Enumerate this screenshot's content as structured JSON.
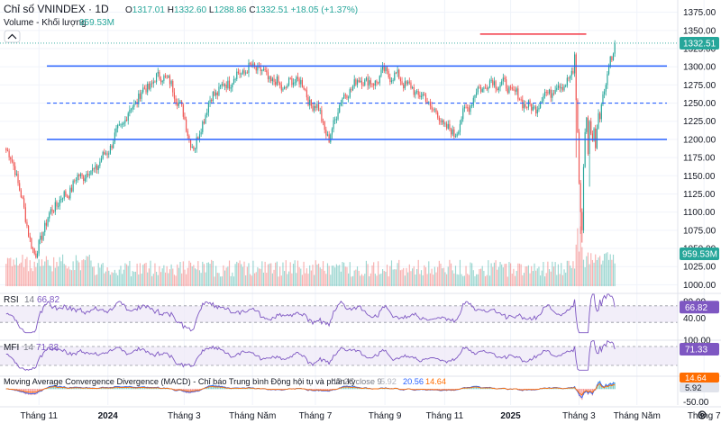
{
  "header": {
    "symbol": "Chỉ số VNINDEX · 1D",
    "ohlc": [
      {
        "k": "O",
        "v": "1317.01"
      },
      {
        "k": "H",
        "v": "1332.60"
      },
      {
        "k": "L",
        "v": "1288.86"
      },
      {
        "k": "C",
        "v": "1332.51"
      }
    ],
    "change": "+18.05 (+1.37%)",
    "volume_label": "Volume - Khối lượng",
    "volume_value": "959.53M",
    "collapse_icon": "chevron-up-icon"
  },
  "colors": {
    "up": "#26a69a",
    "down": "#ef5350",
    "level_line": "#2962ff",
    "resistance": "#f23645",
    "osc_line": "#7e57c2",
    "osc_band": "#ede7f6"
  },
  "chart_data": {
    "type": "candlestick",
    "price_axis": {
      "ticks": [
        1000,
        1025,
        1050,
        1075,
        1100,
        1125,
        1150,
        1175,
        1200,
        1225,
        1250,
        1275,
        1300,
        1325,
        1350,
        1375
      ],
      "tick_labels": [
        "1000.00",
        "1025.00",
        "1050.00",
        "1075.00",
        "1100.00",
        "1125.00",
        "1150.00",
        "1175.00",
        "1200.00",
        "1225.00",
        "1250.00",
        "1275.00",
        "1300.00",
        "1325.00",
        "1350.00",
        "1375.00"
      ],
      "range": [
        998,
        1382
      ]
    },
    "last_price": 1332.51,
    "last_price_label": "1332.51",
    "last_volume_label": "959.53M",
    "drawn_levels": [
      {
        "price": 1301,
        "style": "solid",
        "from": 0.068,
        "to": 1.0
      },
      {
        "price": 1250,
        "style": "dashed",
        "from": 0.068,
        "to": 1.0
      },
      {
        "price": 1200,
        "style": "solid",
        "from": 0.068,
        "to": 1.0
      },
      {
        "price": 1345,
        "style": "solid-red",
        "from": 0.778,
        "to": 0.952
      }
    ],
    "x_axis": {
      "labels": [
        {
          "text": "Tháng 11",
          "bold": false
        },
        {
          "text": "2024",
          "bold": true
        },
        {
          "text": "Tháng 3",
          "bold": false
        },
        {
          "text": "Tháng Năm",
          "bold": false
        },
        {
          "text": "Tháng 7",
          "bold": false
        },
        {
          "text": "Tháng 9",
          "bold": false
        },
        {
          "text": "Tháng 11",
          "bold": false
        },
        {
          "text": "2025",
          "bold": true
        },
        {
          "text": "Tháng 3",
          "bold": false
        },
        {
          "text": "Tháng Năm",
          "bold": false
        },
        {
          "text": "Tháng 7",
          "bold": false
        }
      ]
    },
    "anchors": [
      [
        0.0,
        1185
      ],
      [
        0.015,
        1160
      ],
      [
        0.032,
        1090
      ],
      [
        0.048,
        1035
      ],
      [
        0.06,
        1075
      ],
      [
        0.08,
        1110
      ],
      [
        0.1,
        1125
      ],
      [
        0.12,
        1150
      ],
      [
        0.14,
        1155
      ],
      [
        0.16,
        1175
      ],
      [
        0.18,
        1205
      ],
      [
        0.2,
        1235
      ],
      [
        0.22,
        1262
      ],
      [
        0.24,
        1278
      ],
      [
        0.258,
        1290
      ],
      [
        0.272,
        1272
      ],
      [
        0.285,
        1250
      ],
      [
        0.3,
        1205
      ],
      [
        0.31,
        1185
      ],
      [
        0.322,
        1225
      ],
      [
        0.34,
        1262
      ],
      [
        0.36,
        1275
      ],
      [
        0.385,
        1292
      ],
      [
        0.41,
        1300
      ],
      [
        0.43,
        1285
      ],
      [
        0.455,
        1270
      ],
      [
        0.48,
        1285
      ],
      [
        0.5,
        1250
      ],
      [
        0.515,
        1240
      ],
      [
        0.53,
        1195
      ],
      [
        0.545,
        1245
      ],
      [
        0.565,
        1270
      ],
      [
        0.585,
        1285
      ],
      [
        0.6,
        1275
      ],
      [
        0.62,
        1292
      ],
      [
        0.645,
        1285
      ],
      [
        0.665,
        1270
      ],
      [
        0.69,
        1255
      ],
      [
        0.715,
        1225
      ],
      [
        0.735,
        1205
      ],
      [
        0.755,
        1240
      ],
      [
        0.775,
        1268
      ],
      [
        0.8,
        1280
      ],
      [
        0.825,
        1272
      ],
      [
        0.845,
        1255
      ],
      [
        0.865,
        1240
      ],
      [
        0.885,
        1262
      ],
      [
        0.905,
        1272
      ],
      [
        0.925,
        1282
      ],
      [
        0.945,
        1298
      ],
      [
        0.965,
        1312
      ],
      [
        0.98,
        1325
      ],
      [
        1.0,
        1332
      ]
    ],
    "shock": {
      "start": 0.92,
      "closes": [
        1317,
        1254,
        1210,
        1140,
        1100,
        1075,
        1162,
        1210,
        1230,
        1180,
        1225,
        1208,
        1198,
        1215,
        1188,
        1215,
        1236,
        1228,
        1248,
        1262,
        1266,
        1275,
        1290,
        1300,
        1314,
        1309,
        1318,
        1332
      ],
      "down_spikes": [
        {
          "index": 1,
          "low": 1175
        },
        {
          "index": 4,
          "low": 1070
        },
        {
          "index": 5,
          "low": 1058
        },
        {
          "index": 10,
          "low": 1135
        }
      ]
    },
    "volume": {
      "shock_heights": [
        0.28,
        0.66,
        0.92,
        0.55,
        0.95,
        0.62,
        0.42,
        0.3
      ]
    },
    "rsi": {
      "label": "RSI",
      "length": "14",
      "value": "66.82",
      "range": [
        0,
        100
      ],
      "ticks": [
        80,
        60,
        40
      ],
      "tick_labels": [
        "80.00",
        "60.00",
        "40.00"
      ],
      "band": [
        30,
        70
      ],
      "last": 66.82
    },
    "mfi": {
      "label": "MFI",
      "length": "14",
      "value": "71.33",
      "range": [
        0,
        100
      ],
      "ticks": [
        100
      ],
      "tick_labels": [
        "100.00"
      ],
      "band": [
        20,
        80
      ],
      "last": 71.33
    },
    "macd": {
      "label": "Moving Average Convergence Divergence (MACD) - Chỉ báo Trung bình Động hội tụ và phân kỳ",
      "params": "12 26 close 9",
      "values": [
        "5.92",
        "20.56",
        "14.64"
      ],
      "value_colors": [
        "#b2b5be",
        "#2962ff",
        "#ff6d00"
      ],
      "last_labels": [
        "14.64",
        "5.92"
      ],
      "ticks": [
        -50
      ],
      "tick_labels": [
        "-50.00"
      ]
    }
  }
}
